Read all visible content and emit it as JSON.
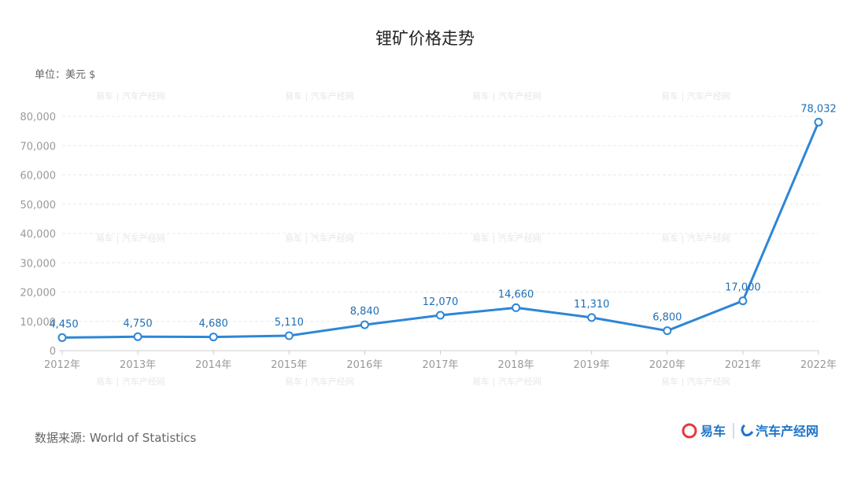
{
  "chart_data": {
    "type": "line",
    "title": "锂矿价格走势",
    "unit_label": "单位：美元 $",
    "xlabel": "",
    "ylabel": "",
    "categories": [
      "2012年",
      "2013年",
      "2014年",
      "2015年",
      "2016年",
      "2017年",
      "2018年",
      "2019年",
      "2020年",
      "2021年",
      "2022年"
    ],
    "series": [
      {
        "values": [
          4450,
          4750,
          4680,
          5110,
          8840,
          12070,
          14660,
          11310,
          6800,
          17000,
          78032
        ]
      }
    ],
    "data_labels": [
      "4,450",
      "4,750",
      "4,680",
      "5,110",
      "8,840",
      "12,070",
      "14,660",
      "11,310",
      "6,800",
      "17,000",
      "78,032"
    ],
    "ylim": [
      0,
      80000
    ],
    "yticks": [
      "0",
      "10,000",
      "20,000",
      "30,000",
      "40,000",
      "50,000",
      "60,000",
      "70,000",
      "80,000"
    ],
    "grid": true,
    "line_color": "#2e86d6"
  },
  "footer": {
    "source": "数据来源: World of Statistics",
    "logo_left": "易车",
    "logo_right": "汽车产经网"
  },
  "watermark_text": "易车 | 汽车产经网"
}
